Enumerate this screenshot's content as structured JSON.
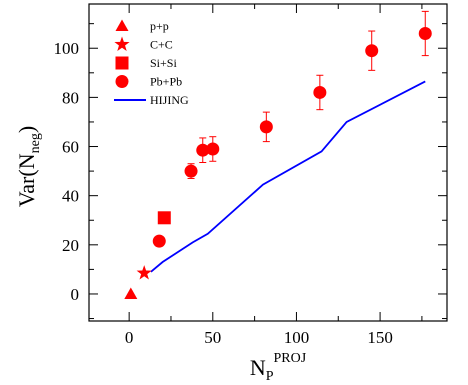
{
  "chart_data": {
    "type": "scatter",
    "xlabel": {
      "main": "N",
      "sub": "P",
      "sup": "PROJ"
    },
    "ylabel": {
      "main": "Var(N",
      "sub": "neg",
      "tail": ")"
    },
    "xlim": [
      -24,
      190
    ],
    "ylim": [
      -11,
      118
    ],
    "xticks": [
      0,
      50,
      100,
      150
    ],
    "yticks": [
      0,
      20,
      40,
      60,
      80,
      100
    ],
    "grid": false,
    "legend_position": "top-left",
    "colors": {
      "data": "#ff0000",
      "model": "#0000ff",
      "axis": "#000000"
    },
    "series": [
      {
        "name": "p+p",
        "marker": "triangle",
        "points": [
          {
            "x": 1,
            "y": 0
          }
        ]
      },
      {
        "name": "C+C",
        "marker": "star",
        "points": [
          {
            "x": 9,
            "y": 8.5
          }
        ]
      },
      {
        "name": "Si+Si",
        "marker": "square",
        "points": [
          {
            "x": 21,
            "y": 31
          }
        ]
      },
      {
        "name": "Pb+Pb",
        "marker": "circle",
        "points": [
          {
            "x": 18,
            "y": 21.5,
            "err": 0
          },
          {
            "x": 37,
            "y": 50,
            "err": 3
          },
          {
            "x": 44,
            "y": 58.5,
            "err": 5
          },
          {
            "x": 50,
            "y": 59,
            "err": 5
          },
          {
            "x": 82,
            "y": 68,
            "err": 6
          },
          {
            "x": 114,
            "y": 82,
            "err": 7
          },
          {
            "x": 145,
            "y": 99,
            "err": 8
          },
          {
            "x": 177,
            "y": 106,
            "err": 9
          }
        ]
      },
      {
        "name": "HIJING",
        "marker": "line",
        "points": [
          {
            "x": 13,
            "y": 9
          },
          {
            "x": 20,
            "y": 13
          },
          {
            "x": 38,
            "y": 21
          },
          {
            "x": 47,
            "y": 24.5
          },
          {
            "x": 80,
            "y": 44.5
          },
          {
            "x": 115,
            "y": 58
          },
          {
            "x": 130,
            "y": 70
          },
          {
            "x": 177,
            "y": 86.5
          }
        ]
      }
    ]
  }
}
